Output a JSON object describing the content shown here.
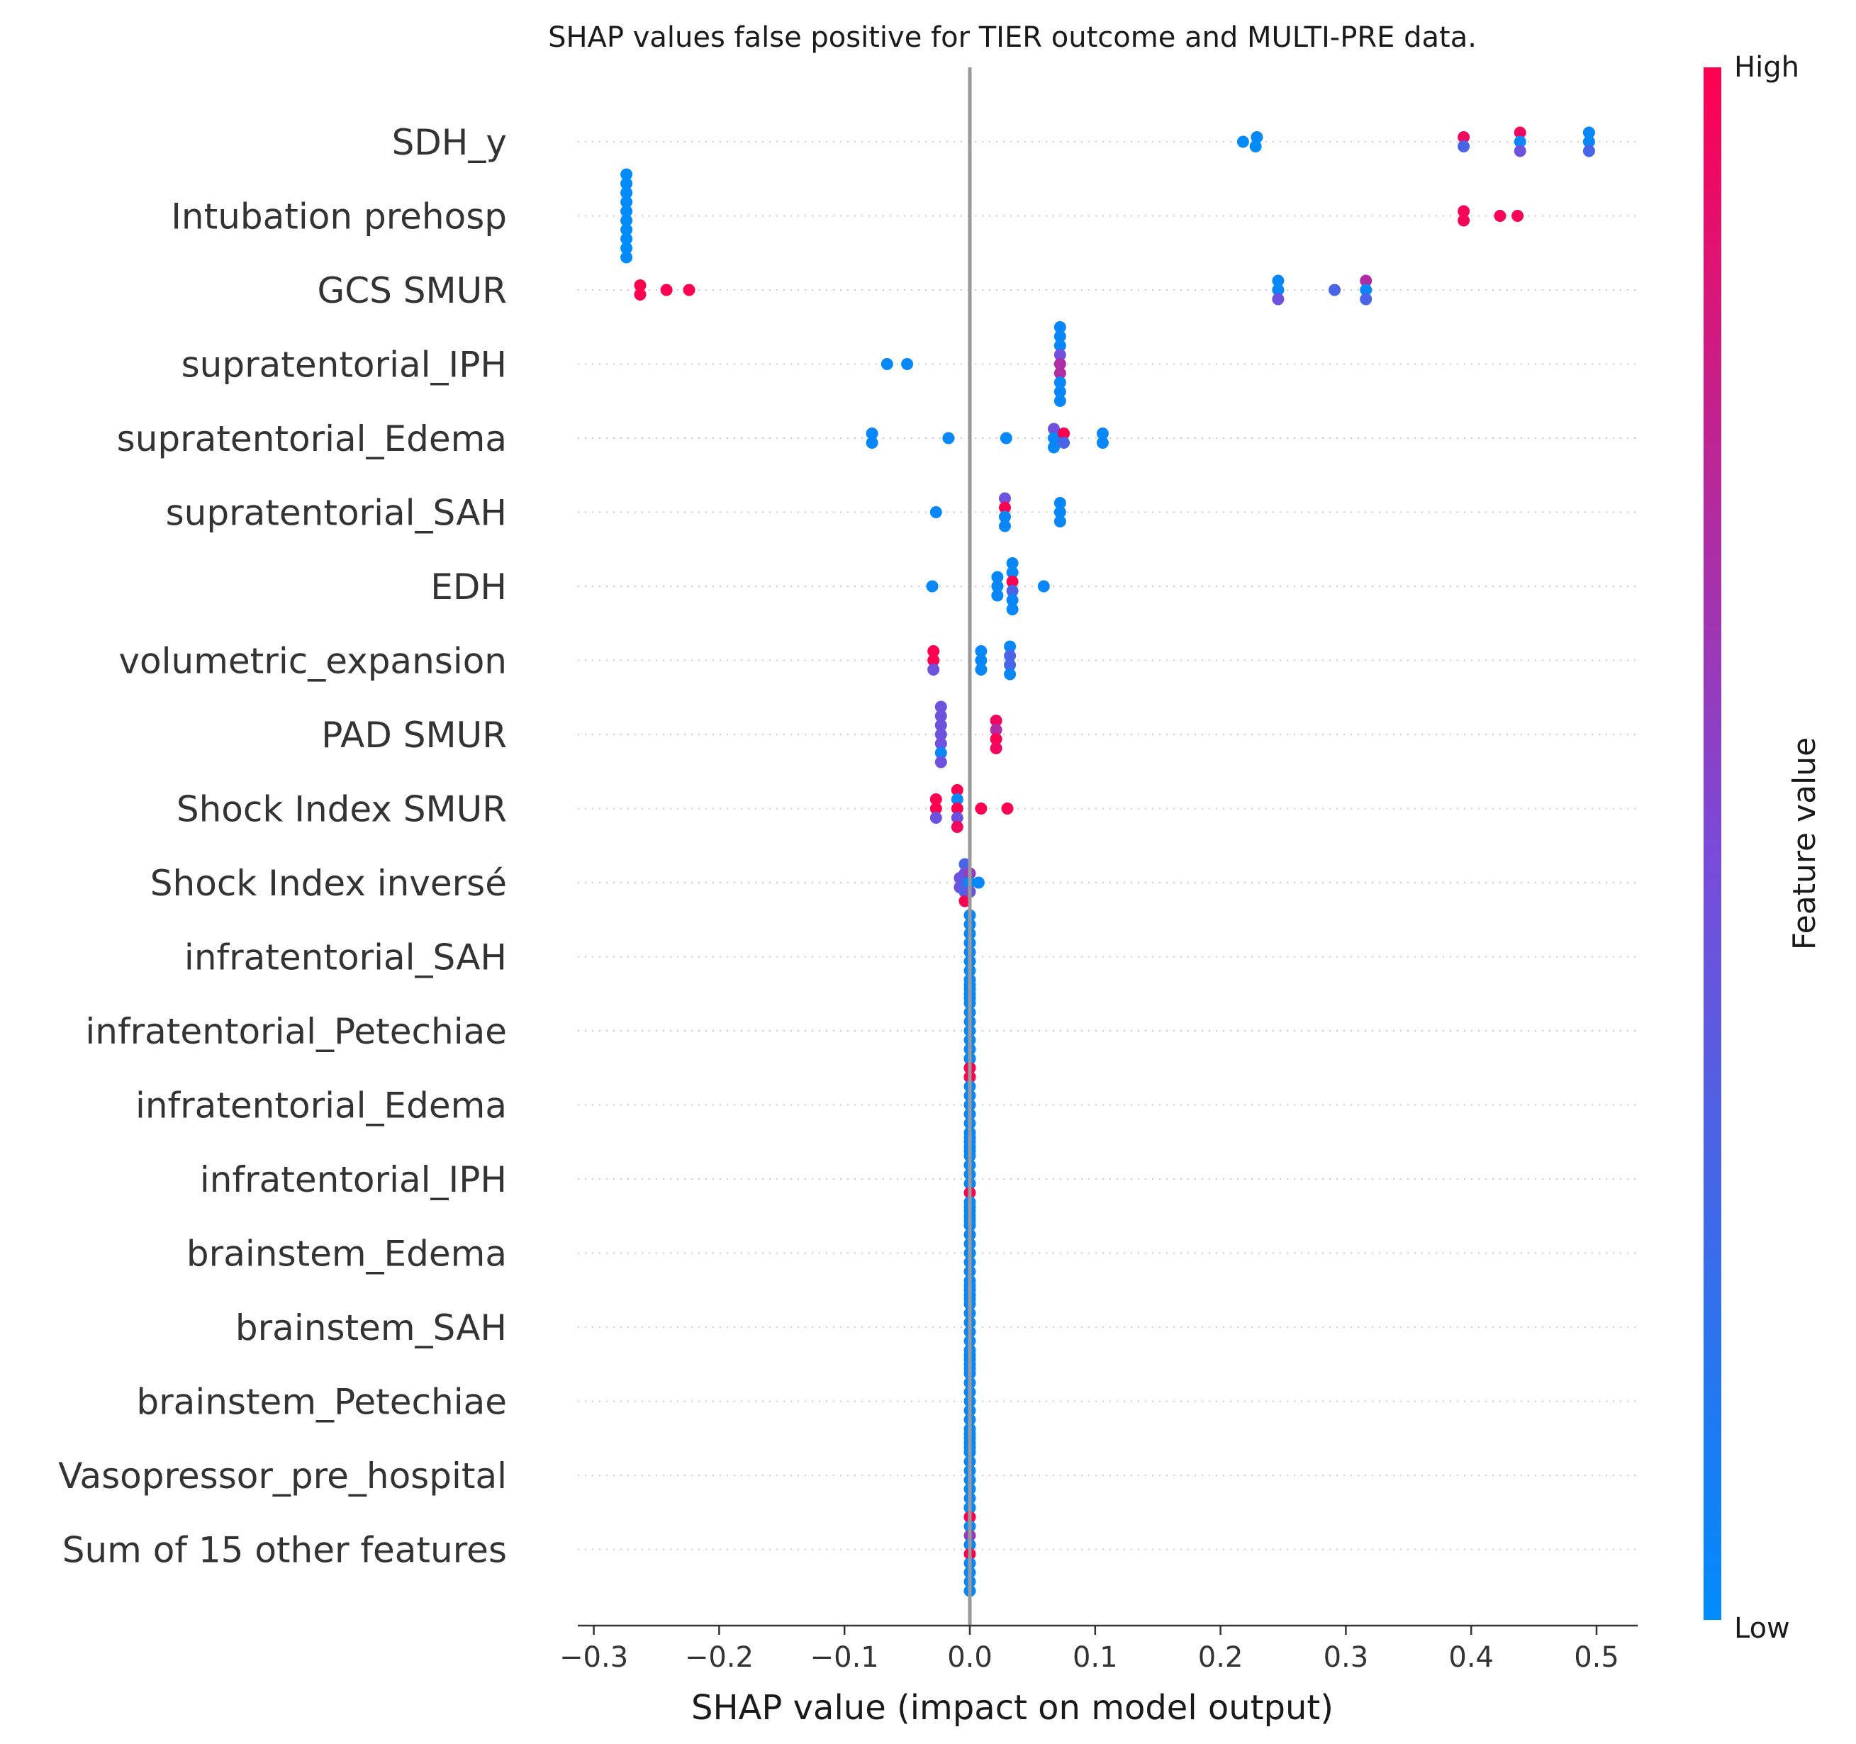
{
  "chart_data": {
    "type": "scatter",
    "title": "SHAP values false positive for TIER outcome and MULTI-PRE data.",
    "xlabel": "SHAP value (impact on model output)",
    "ylabel": "",
    "xlim": [
      -0.31,
      0.53
    ],
    "xticks": [
      -0.3,
      -0.2,
      -0.1,
      0.0,
      0.1,
      0.2,
      0.3,
      0.4,
      0.5
    ],
    "xtick_labels": [
      "−0.3",
      "−0.2",
      "−0.1",
      "0.0",
      "0.1",
      "0.2",
      "0.3",
      "0.4",
      "0.5"
    ],
    "grid": "dotted horizontal row guides",
    "colorbar": {
      "title": "Feature value",
      "high_label": "High",
      "low_label": "Low",
      "high_color": "#ff0051",
      "low_color": "#008bfb"
    },
    "features": [
      {
        "name": "SDH_y",
        "points": [
          [
            0.229,
            0.03
          ],
          [
            0.218,
            0
          ],
          [
            0.228,
            0
          ],
          [
            0.394,
            0.95
          ],
          [
            0.439,
            0.95
          ],
          [
            0.494,
            0.03
          ],
          [
            0.394,
            0.3
          ],
          [
            0.439,
            0.03
          ],
          [
            0.494,
            0.03
          ],
          [
            0.439,
            0.45
          ],
          [
            0.494,
            0.3
          ]
        ]
      },
      {
        "name": "Intubation prehosp",
        "points": [
          [
            -0.274,
            0
          ],
          [
            -0.274,
            0
          ],
          [
            -0.274,
            0
          ],
          [
            -0.274,
            0
          ],
          [
            -0.274,
            0
          ],
          [
            -0.274,
            0
          ],
          [
            -0.274,
            0
          ],
          [
            -0.274,
            0
          ],
          [
            -0.274,
            0
          ],
          [
            -0.274,
            0
          ],
          [
            0.394,
            0.97
          ],
          [
            0.394,
            0.97
          ],
          [
            0.423,
            0.97
          ],
          [
            0.437,
            0.97
          ]
        ]
      },
      {
        "name": "GCS SMUR",
        "points": [
          [
            -0.263,
            1
          ],
          [
            -0.263,
            1
          ],
          [
            -0.242,
            1
          ],
          [
            -0.224,
            1
          ],
          [
            0.246,
            0.03
          ],
          [
            0.246,
            0.03
          ],
          [
            0.246,
            0.45
          ],
          [
            0.291,
            0.3
          ],
          [
            0.316,
            0.7
          ],
          [
            0.316,
            0.03
          ],
          [
            0.316,
            0.3
          ]
        ]
      },
      {
        "name": "supratentorial_IPH",
        "points": [
          [
            -0.066,
            0.02
          ],
          [
            -0.05,
            0.02
          ],
          [
            0.072,
            0.03
          ],
          [
            0.072,
            0.03
          ],
          [
            0.072,
            0.03
          ],
          [
            0.072,
            0.45
          ],
          [
            0.072,
            0.7
          ],
          [
            0.072,
            0.7
          ],
          [
            0.072,
            0.03
          ],
          [
            0.072,
            0.03
          ],
          [
            0.072,
            0.03
          ]
        ]
      },
      {
        "name": "supratentorial_Edema",
        "points": [
          [
            -0.078,
            0.03
          ],
          [
            -0.078,
            0.03
          ],
          [
            -0.017,
            0.03
          ],
          [
            0.029,
            0.03
          ],
          [
            0.067,
            0.45
          ],
          [
            0.075,
            1
          ],
          [
            0.067,
            0.03
          ],
          [
            0.075,
            0.3
          ],
          [
            0.106,
            0.03
          ],
          [
            0.106,
            0.03
          ],
          [
            0.067,
            0.03
          ]
        ]
      },
      {
        "name": "supratentorial_SAH",
        "points": [
          [
            -0.027,
            0.03
          ],
          [
            0.028,
            0.45
          ],
          [
            0.028,
            1
          ],
          [
            0.028,
            0.03
          ],
          [
            0.028,
            0.03
          ],
          [
            0.072,
            0.03
          ],
          [
            0.072,
            0.03
          ],
          [
            0.072,
            0.03
          ]
        ]
      },
      {
        "name": "EDH",
        "points": [
          [
            -0.03,
            0.03
          ],
          [
            0.022,
            0.03
          ],
          [
            0.022,
            0.03
          ],
          [
            0.022,
            0.03
          ],
          [
            0.034,
            0.03
          ],
          [
            0.034,
            0.03
          ],
          [
            0.034,
            1
          ],
          [
            0.034,
            0.3
          ],
          [
            0.034,
            0.03
          ],
          [
            0.034,
            0.03
          ],
          [
            0.059,
            0.03
          ]
        ]
      },
      {
        "name": "volumetric_expansion",
        "points": [
          [
            -0.029,
            1
          ],
          [
            -0.029,
            1
          ],
          [
            -0.029,
            0.45
          ],
          [
            0.009,
            0.03
          ],
          [
            0.009,
            0.03
          ],
          [
            0.009,
            0.03
          ],
          [
            0.032,
            0.03
          ],
          [
            0.032,
            0.3
          ],
          [
            0.032,
            0.3
          ],
          [
            0.032,
            0.03
          ]
        ]
      },
      {
        "name": "PAD  SMUR",
        "points": [
          [
            -0.023,
            0.45
          ],
          [
            -0.023,
            0.45
          ],
          [
            -0.023,
            0.45
          ],
          [
            -0.023,
            0.45
          ],
          [
            -0.023,
            0.45
          ],
          [
            -0.023,
            0.03
          ],
          [
            -0.023,
            0.45
          ],
          [
            0.021,
            0.95
          ],
          [
            0.021,
            0.7
          ],
          [
            0.021,
            1
          ],
          [
            0.021,
            0.95
          ]
        ]
      },
      {
        "name": "Shock Index SMUR",
        "points": [
          [
            -0.01,
            1
          ],
          [
            -0.01,
            0.03
          ],
          [
            -0.01,
            1
          ],
          [
            -0.01,
            0.45
          ],
          [
            -0.01,
            0.95
          ],
          [
            -0.027,
            1
          ],
          [
            -0.027,
            1
          ],
          [
            -0.027,
            0.45
          ],
          [
            0.009,
            1
          ],
          [
            0.03,
            1
          ]
        ]
      },
      {
        "name": "Shock Index inversé",
        "points": [
          [
            -0.004,
            0.3
          ],
          [
            -0.004,
            0.45
          ],
          [
            0.0,
            0.6
          ],
          [
            -0.008,
            0.45
          ],
          [
            -0.004,
            0.3
          ],
          [
            0.0,
            0.03
          ],
          [
            0.007,
            0.03
          ],
          [
            -0.008,
            0.45
          ],
          [
            -0.004,
            0.3
          ],
          [
            0.0,
            0.45
          ],
          [
            -0.004,
            1
          ]
        ]
      },
      {
        "name": "infratentorial_SAH",
        "points": [
          [
            0,
            0.03
          ],
          [
            0,
            0.03
          ],
          [
            0,
            0.03
          ],
          [
            0,
            0.03
          ],
          [
            0,
            0.03
          ],
          [
            0,
            0.03
          ],
          [
            0,
            0.03
          ],
          [
            0,
            0.03
          ],
          [
            0,
            0.03
          ],
          [
            0,
            0.03
          ]
        ]
      },
      {
        "name": "infratentorial_Petechiae",
        "points": [
          [
            0,
            0.03
          ],
          [
            0,
            0.03
          ],
          [
            0,
            0.03
          ],
          [
            0,
            0.03
          ],
          [
            0,
            0.03
          ],
          [
            0,
            0.03
          ],
          [
            0,
            0.03
          ],
          [
            0,
            0.03
          ],
          [
            0,
            0.03
          ],
          [
            0,
            0.03
          ],
          [
            0,
            1
          ]
        ]
      },
      {
        "name": "infratentorial_Edema",
        "points": [
          [
            0,
            0.03
          ],
          [
            0,
            1
          ],
          [
            0,
            1
          ],
          [
            0,
            0.03
          ],
          [
            0,
            0.03
          ],
          [
            0,
            0.03
          ],
          [
            0,
            0.03
          ],
          [
            0,
            0.03
          ],
          [
            0,
            0.03
          ],
          [
            0,
            0.03
          ],
          [
            0,
            0.03
          ]
        ]
      },
      {
        "name": "infratentorial_IPH",
        "points": [
          [
            0,
            0.03
          ],
          [
            0,
            0.03
          ],
          [
            0,
            0.03
          ],
          [
            0,
            0.03
          ],
          [
            0,
            0.03
          ],
          [
            0,
            0.03
          ],
          [
            0,
            1
          ],
          [
            0,
            0.03
          ],
          [
            0,
            0.03
          ],
          [
            0,
            0.03
          ]
        ]
      },
      {
        "name": "brainstem_Edema",
        "points": [
          [
            0,
            0.03
          ],
          [
            0,
            0.03
          ],
          [
            0,
            0.03
          ],
          [
            0,
            0.03
          ],
          [
            0,
            0.03
          ],
          [
            0,
            0.03
          ],
          [
            0,
            0.03
          ],
          [
            0,
            0.03
          ],
          [
            0,
            0.03
          ],
          [
            0,
            0.03
          ],
          [
            0,
            0.03
          ]
        ]
      },
      {
        "name": "brainstem_SAH",
        "points": [
          [
            0,
            0.03
          ],
          [
            0,
            0.03
          ],
          [
            0,
            0.03
          ],
          [
            0,
            0.03
          ],
          [
            0,
            0.03
          ],
          [
            0,
            0.03
          ],
          [
            0,
            0.03
          ],
          [
            0,
            0.03
          ],
          [
            0,
            0.03
          ],
          [
            0,
            0.03
          ]
        ]
      },
      {
        "name": "brainstem_Petechiae",
        "points": [
          [
            0,
            0.03
          ],
          [
            0,
            0.03
          ],
          [
            0,
            0.03
          ],
          [
            0,
            0.03
          ],
          [
            0,
            0.03
          ],
          [
            0,
            0.03
          ],
          [
            0,
            0.03
          ],
          [
            0,
            0.03
          ],
          [
            0,
            0.03
          ],
          [
            0,
            0.03
          ],
          [
            0,
            0.03
          ]
        ]
      },
      {
        "name": "Vasopressor_pre_hospital",
        "points": [
          [
            0,
            0.03
          ],
          [
            0,
            0.03
          ],
          [
            0,
            0.03
          ],
          [
            0,
            0.03
          ],
          [
            0,
            0.03
          ],
          [
            0,
            0.03
          ],
          [
            0,
            0.03
          ],
          [
            0,
            0.03
          ],
          [
            0,
            0.03
          ],
          [
            0,
            0.03
          ]
        ]
      },
      {
        "name": "Sum of 15 other features",
        "points": [
          [
            0,
            0.03
          ],
          [
            0,
            1
          ],
          [
            0,
            0.03
          ],
          [
            0,
            0.6
          ],
          [
            0,
            0.03
          ],
          [
            0,
            1
          ],
          [
            0,
            0.03
          ],
          [
            0,
            0.03
          ],
          [
            0,
            0.03
          ],
          [
            0,
            0.03
          ]
        ]
      }
    ]
  }
}
